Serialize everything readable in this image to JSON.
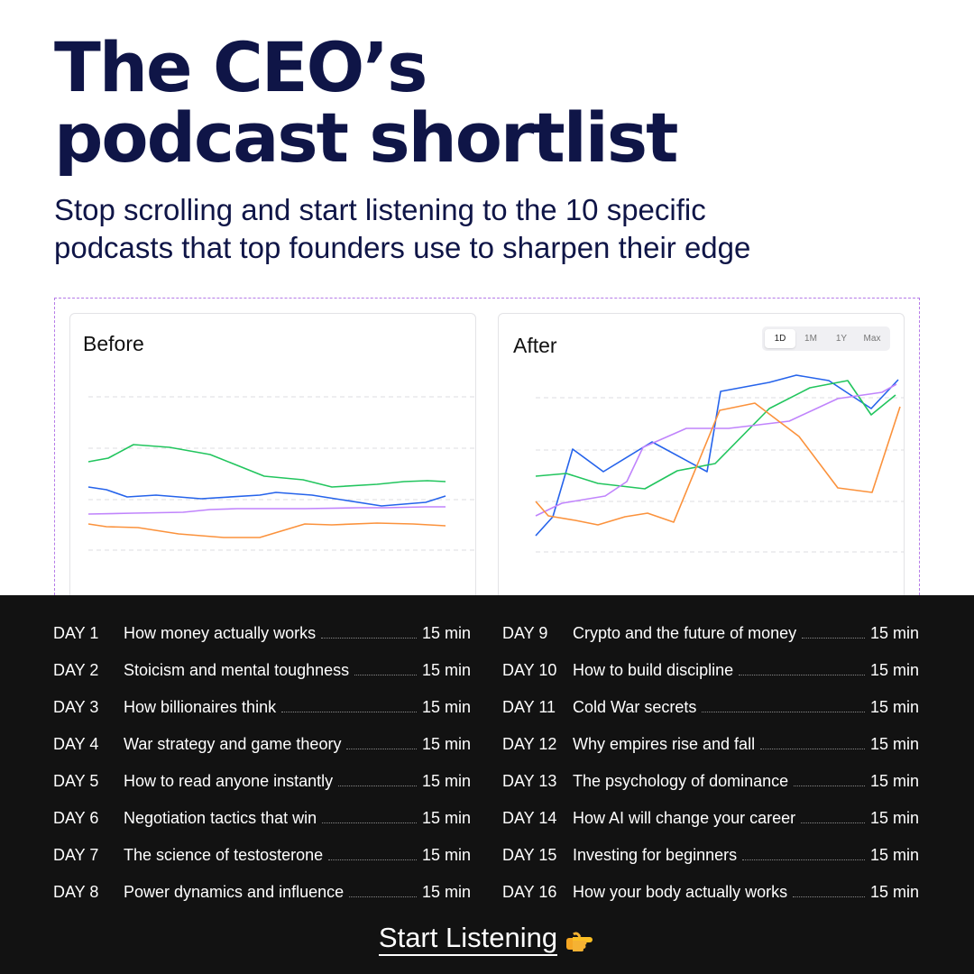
{
  "header": {
    "title_line1": "The CEO’s",
    "title_line2": "podcast shortlist",
    "subtitle_line1": "Stop scrolling and start listening to the 10 specific",
    "subtitle_line2": "podcasts that top founders use to sharpen their edge"
  },
  "charts": {
    "before_title": "Before",
    "after_title": "After",
    "range_tabs": [
      "1D",
      "1M",
      "1Y",
      "Max"
    ],
    "active_range": "1D",
    "colors": {
      "green": "#22c55e",
      "blue": "#2563eb",
      "purple": "#c084fc",
      "orange": "#fb923c"
    }
  },
  "schedule": {
    "left": [
      {
        "day": "DAY 1",
        "topic": "How money actually works",
        "duration": "15 min"
      },
      {
        "day": "DAY 2",
        "topic": "Stoicism and mental toughness",
        "duration": "15 min"
      },
      {
        "day": "DAY 3",
        "topic": "How billionaires think",
        "duration": "15 min"
      },
      {
        "day": "DAY 4",
        "topic": "War strategy and game theory",
        "duration": "15 min"
      },
      {
        "day": "DAY 5",
        "topic": "How to read anyone instantly",
        "duration": "15 min"
      },
      {
        "day": "DAY 6",
        "topic": "Negotiation tactics that win",
        "duration": "15 min"
      },
      {
        "day": "DAY 7",
        "topic": "The science of testosterone",
        "duration": "15 min"
      },
      {
        "day": "DAY 8",
        "topic": "Power dynamics and influence",
        "duration": "15 min"
      }
    ],
    "right": [
      {
        "day": "DAY 9",
        "topic": "Crypto and the future of money",
        "duration": "15 min"
      },
      {
        "day": "DAY 10",
        "topic": "How to build discipline",
        "duration": "15 min"
      },
      {
        "day": "DAY 11",
        "topic": "Cold War secrets",
        "duration": "15 min"
      },
      {
        "day": "DAY 12",
        "topic": "Why empires rise and fall",
        "duration": "15 min"
      },
      {
        "day": "DAY 13",
        "topic": "The psychology of dominance",
        "duration": "15 min"
      },
      {
        "day": "DAY 14",
        "topic": "How AI will change your career",
        "duration": "15 min"
      },
      {
        "day": "DAY 15",
        "topic": "Investing for beginners",
        "duration": "15 min"
      },
      {
        "day": "DAY 16",
        "topic": "How your body actually works",
        "duration": "15 min"
      }
    ]
  },
  "cta": {
    "label": "Start Listening",
    "icon": "pointing-right-hand-icon"
  }
}
